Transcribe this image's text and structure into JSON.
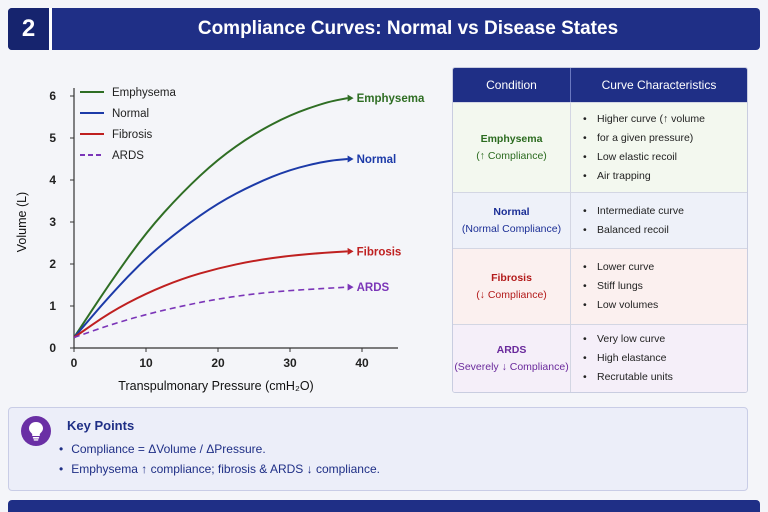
{
  "header": {
    "number": "2",
    "title": "Compliance Curves: Normal vs Disease States"
  },
  "chart_data": {
    "type": "line",
    "xlabel": "Transpulmonary Pressure (cmH₂O)",
    "ylabel": "Volume (L)",
    "xlim": [
      0,
      45
    ],
    "ylim": [
      0,
      6
    ],
    "x_ticks": [
      0,
      10,
      20,
      30,
      40
    ],
    "y_ticks": [
      0,
      1,
      2,
      3,
      4,
      5,
      6
    ],
    "grid": false,
    "legend_position": "top-left",
    "series": [
      {
        "name": "Emphysema",
        "color": "#2f6e24",
        "dashed": false,
        "end_label": "Emphysema",
        "points": [
          [
            0,
            0.25
          ],
          [
            5,
            1.55
          ],
          [
            10,
            2.75
          ],
          [
            15,
            3.7
          ],
          [
            20,
            4.5
          ],
          [
            25,
            5.1
          ],
          [
            30,
            5.55
          ],
          [
            35,
            5.85
          ],
          [
            38,
            5.95
          ]
        ]
      },
      {
        "name": "Normal",
        "color": "#1c3aa8",
        "dashed": false,
        "end_label": "Normal",
        "points": [
          [
            0,
            0.25
          ],
          [
            5,
            1.25
          ],
          [
            10,
            2.15
          ],
          [
            15,
            2.85
          ],
          [
            20,
            3.45
          ],
          [
            25,
            3.9
          ],
          [
            30,
            4.25
          ],
          [
            35,
            4.45
          ],
          [
            38,
            4.5
          ]
        ]
      },
      {
        "name": "Fibrosis",
        "color": "#bf2020",
        "dashed": false,
        "end_label": "Fibrosis",
        "points": [
          [
            0,
            0.25
          ],
          [
            5,
            0.85
          ],
          [
            10,
            1.3
          ],
          [
            15,
            1.65
          ],
          [
            20,
            1.9
          ],
          [
            25,
            2.08
          ],
          [
            30,
            2.2
          ],
          [
            35,
            2.27
          ],
          [
            38,
            2.3
          ]
        ]
      },
      {
        "name": "ARDS",
        "color": "#7b35b8",
        "dashed": true,
        "end_label": "ARDS",
        "points": [
          [
            0,
            0.25
          ],
          [
            5,
            0.55
          ],
          [
            10,
            0.8
          ],
          [
            15,
            1.0
          ],
          [
            20,
            1.17
          ],
          [
            25,
            1.29
          ],
          [
            30,
            1.37
          ],
          [
            35,
            1.42
          ],
          [
            38,
            1.45
          ]
        ]
      }
    ]
  },
  "table": {
    "headers": [
      "Condition",
      "Curve Characteristics"
    ],
    "rows": [
      {
        "name": "Emphysema",
        "sub": "(↑ Compliance)",
        "items": [
          "Higher curve (↑ volume",
          "for a given pressure)",
          "Low elastic recoil",
          "Air trapping"
        ]
      },
      {
        "name": "Normal",
        "sub": "(Normal Compliance)",
        "items": [
          "Intermediate curve",
          "Balanced recoil"
        ]
      },
      {
        "name": "Fibrosis",
        "sub": "(↓ Compliance)",
        "items": [
          "Lower curve",
          "Stiff lungs",
          "Low volumes"
        ]
      },
      {
        "name": "ARDS",
        "sub": "(Severely ↓ Compliance)",
        "items": [
          "Very low curve",
          "High elastance",
          "Recrutable units"
        ]
      }
    ]
  },
  "key_points": {
    "title": "Key Points",
    "items": [
      "Compliance = ΔVolume / ΔPressure.",
      "Emphysema ↑ compliance; fibrosis & ARDS ↓ compliance."
    ]
  },
  "icons": {
    "key_points": "lightbulb-icon"
  }
}
